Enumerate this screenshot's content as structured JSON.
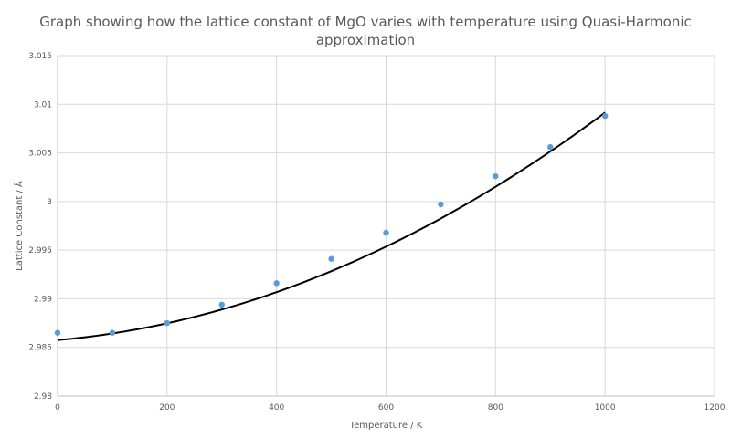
{
  "chart_data": {
    "type": "scatter",
    "title_line1": "Graph showing how the lattice constant of MgO varies with temperature using Quasi-Harmonic",
    "title_line2": "approximation",
    "xlabel": "Temperature  / K",
    "ylabel": "Lattice Constant / Å",
    "xlim": [
      0,
      1200
    ],
    "ylim": [
      2.98,
      3.015
    ],
    "xticks": [
      0,
      200,
      400,
      600,
      800,
      1000,
      1200
    ],
    "xtick_labels": [
      "0",
      "200",
      "400",
      "600",
      "800",
      "1000",
      "1200"
    ],
    "yticks": [
      2.98,
      2.985,
      2.99,
      2.995,
      3.0,
      3.005,
      3.01,
      3.015
    ],
    "ytick_labels": [
      "2.98",
      "2.985",
      "2.99",
      "2.995",
      "3",
      "3.005",
      "3.01",
      "3.015"
    ],
    "grid": true,
    "series": [
      {
        "kind": "points",
        "color": "#5b9bd5",
        "x": [
          0,
          100,
          200,
          300,
          400,
          500,
          600,
          700,
          800,
          900,
          1000
        ],
        "y": [
          2.9865,
          2.9865,
          2.9875,
          2.9894,
          2.9916,
          2.9941,
          2.9968,
          2.9997,
          3.0026,
          3.0056,
          3.0088
        ]
      },
      {
        "kind": "trendline",
        "color": "#000000",
        "x": [
          0,
          1000
        ],
        "polynomial": [
          2.98575,
          4.95e-06,
          1.845e-08
        ]
      }
    ]
  }
}
